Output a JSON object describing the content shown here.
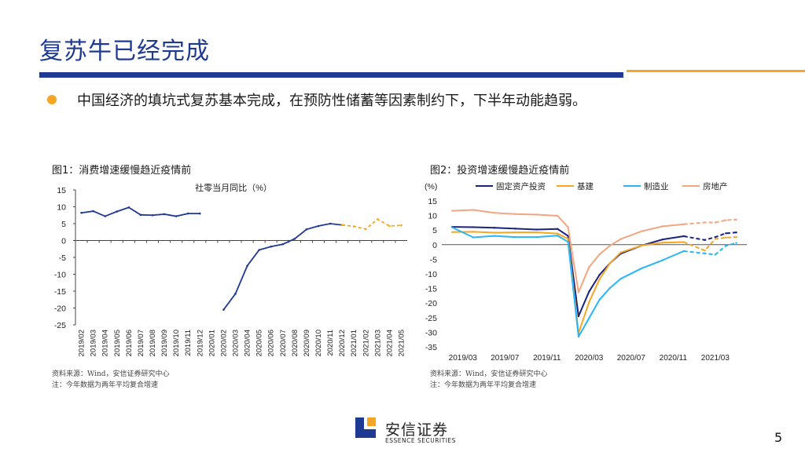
{
  "page": {
    "title": "复苏牛已经完成",
    "bullet": "中国经济的填坑式复苏基本完成，在预防性储蓄等因素制约下，下半年动能趋弱。",
    "page_number": "5",
    "logo_cn": "安信证券",
    "logo_en": "ESSENCE SECURITIES",
    "colors": {
      "brand_blue": "#1f3a93",
      "accent_orange": "#f5a623"
    }
  },
  "chart_data": [
    {
      "type": "line",
      "figure_title": "图1：消费增速缓慢趋近疫情前",
      "title": "社零当月同比（%）",
      "categories": [
        "2019/02",
        "2019/03",
        "2019/04",
        "2019/05",
        "2019/06",
        "2019/07",
        "2019/08",
        "2019/09",
        "2019/10",
        "2019/11",
        "2019/12",
        "2020/01",
        "2020/02",
        "2020/03",
        "2020/04",
        "2020/05",
        "2020/06",
        "2020/07",
        "2020/08",
        "2020/09",
        "2020/10",
        "2020/11",
        "2020/12",
        "2021/01",
        "2021/02",
        "2021/03",
        "2021/04",
        "2021/05"
      ],
      "series": [
        {
          "name": "社零当月同比",
          "style": "solid",
          "color": "#1f3a93",
          "values": [
            8.2,
            8.7,
            7.2,
            8.6,
            9.8,
            7.6,
            7.5,
            7.8,
            7.2,
            8.0,
            8.0,
            null,
            -20.5,
            -15.8,
            -7.5,
            -2.8,
            -1.8,
            -1.1,
            0.5,
            3.3,
            4.3,
            5.0,
            4.6,
            null,
            null,
            null,
            null,
            null
          ]
        },
        {
          "name": "两年平均复合增速",
          "style": "dashed",
          "color": "#f5a623",
          "values": [
            null,
            null,
            null,
            null,
            null,
            null,
            null,
            null,
            null,
            null,
            null,
            null,
            null,
            null,
            null,
            null,
            null,
            null,
            null,
            null,
            null,
            null,
            4.6,
            4.2,
            3.4,
            6.3,
            4.3,
            4.5
          ]
        }
      ],
      "ylim": [
        -25,
        15
      ],
      "yticks": [
        15,
        10,
        5,
        0,
        -5,
        -10,
        -15,
        -20,
        -25
      ],
      "xlabel": "",
      "ylabel": "",
      "source_note": "资料来源：Wind，安信证券研究中心",
      "note": "注：今年数据为两年平均复合增速"
    },
    {
      "type": "line",
      "figure_title": "图2：投资增速缓慢趋近疫情前",
      "ylabel": "(%)",
      "x_ticks": [
        "2019/03",
        "2019/07",
        "2019/11",
        "2020/03",
        "2020/07",
        "2020/11",
        "2021/03"
      ],
      "ylim": [
        -35,
        15
      ],
      "yticks": [
        15,
        10,
        5,
        0,
        -5,
        -10,
        -15,
        -20,
        -25,
        -30,
        -35
      ],
      "series": [
        {
          "name": "固定资产投资",
          "color": "#1a237e",
          "solid_until": "2020/12",
          "x": [
            "2019/02",
            "2019/04",
            "2019/06",
            "2019/08",
            "2019/10",
            "2019/12",
            "2020/01",
            "2020/02",
            "2020/03",
            "2020/04",
            "2020/05",
            "2020/06",
            "2020/08",
            "2020/10",
            "2020/12",
            "2021/02",
            "2021/03",
            "2021/04",
            "2021/05"
          ],
          "values": [
            6.1,
            6.0,
            5.8,
            5.5,
            5.2,
            5.4,
            3.0,
            -24.5,
            -16.1,
            -10.3,
            -6.3,
            -3.1,
            -0.3,
            1.8,
            2.9,
            1.6,
            2.6,
            3.9,
            4.2
          ]
        },
        {
          "name": "基建",
          "color": "#f5a623",
          "solid_until": "2020/12",
          "x": [
            "2019/02",
            "2019/04",
            "2019/06",
            "2019/08",
            "2019/10",
            "2019/12",
            "2020/01",
            "2020/02",
            "2020/03",
            "2020/04",
            "2020/05",
            "2020/06",
            "2020/08",
            "2020/10",
            "2020/12",
            "2021/02",
            "2021/03",
            "2021/04",
            "2021/05"
          ],
          "values": [
            4.3,
            4.4,
            4.1,
            4.2,
            4.2,
            3.8,
            2.0,
            -30.3,
            -19.7,
            -11.8,
            -6.3,
            -2.7,
            -0.3,
            0.7,
            0.9,
            -2.0,
            2.0,
            2.4,
            2.6
          ]
        },
        {
          "name": "制造业",
          "color": "#29b6f6",
          "solid_until": "2020/12",
          "x": [
            "2019/02",
            "2019/04",
            "2019/06",
            "2019/08",
            "2019/10",
            "2019/12",
            "2020/01",
            "2020/02",
            "2020/03",
            "2020/04",
            "2020/05",
            "2020/06",
            "2020/08",
            "2020/10",
            "2020/12",
            "2021/02",
            "2021/03",
            "2021/04",
            "2021/05"
          ],
          "values": [
            5.9,
            2.5,
            3.0,
            2.6,
            2.6,
            3.1,
            1.0,
            -31.5,
            -25.2,
            -18.8,
            -14.8,
            -11.7,
            -8.1,
            -5.3,
            -2.2,
            -3.0,
            -3.4,
            -0.4,
            0.6
          ]
        },
        {
          "name": "房地产",
          "color": "#f4a582",
          "solid_until": "2020/12",
          "x": [
            "2019/02",
            "2019/04",
            "2019/06",
            "2019/08",
            "2019/10",
            "2019/12",
            "2020/01",
            "2020/02",
            "2020/03",
            "2020/04",
            "2020/05",
            "2020/06",
            "2020/08",
            "2020/10",
            "2020/12",
            "2021/02",
            "2021/03",
            "2021/04",
            "2021/05"
          ],
          "values": [
            11.6,
            11.9,
            10.9,
            10.5,
            10.3,
            9.9,
            6.0,
            -16.3,
            -7.7,
            -3.3,
            -0.3,
            1.9,
            4.6,
            6.3,
            7.0,
            7.6,
            7.6,
            8.4,
            8.6
          ]
        }
      ],
      "source_note": "资料来源：Wind，安信证券研究中心",
      "note": "注：今年数据为两年平均复合增速"
    }
  ]
}
